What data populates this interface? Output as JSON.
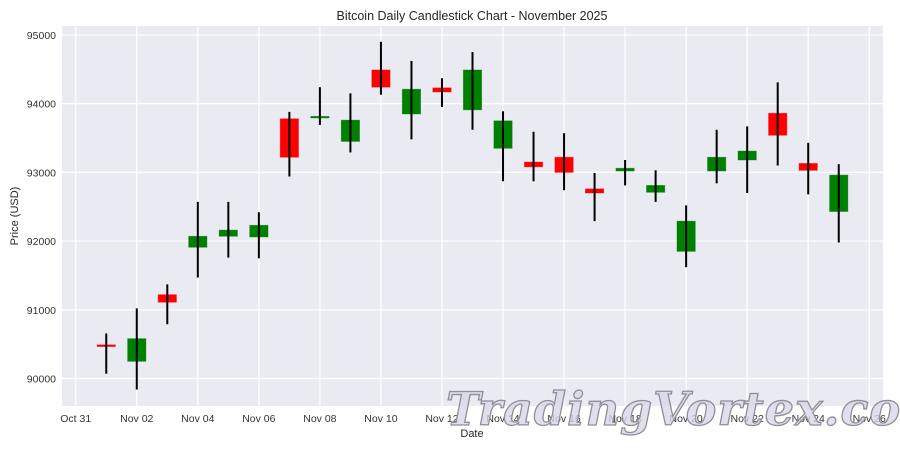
{
  "chart_data": {
    "type": "candlestick",
    "title": "Bitcoin Daily Candlestick Chart - November 2025",
    "xlabel": "Date",
    "ylabel": "Price (USD)",
    "ylim": [
      89600,
      95130
    ],
    "xlim_days_from_oct31": [
      -0.45,
      26.45
    ],
    "grid": true,
    "legend": null,
    "y_ticks": [
      90000,
      91000,
      92000,
      93000,
      94000,
      95000
    ],
    "x_ticks": [
      {
        "label": "Oct 31",
        "day": 0
      },
      {
        "label": "Nov 02",
        "day": 2
      },
      {
        "label": "Nov 04",
        "day": 4
      },
      {
        "label": "Nov 06",
        "day": 6
      },
      {
        "label": "Nov 08",
        "day": 8
      },
      {
        "label": "Nov 10",
        "day": 10
      },
      {
        "label": "Nov 12",
        "day": 12
      },
      {
        "label": "Nov 14",
        "day": 14
      },
      {
        "label": "Nov 16",
        "day": 16
      },
      {
        "label": "Nov 18",
        "day": 18
      },
      {
        "label": "Nov 20",
        "day": 20
      },
      {
        "label": "Nov 22",
        "day": 22
      },
      {
        "label": "Nov 24",
        "day": 24
      },
      {
        "label": "Nov 26",
        "day": 26
      }
    ],
    "colors": {
      "up": "#008000",
      "down": "#ff0000",
      "wick": "#000000",
      "background": "#eaeaf2",
      "grid": "#ffffff"
    },
    "candles": [
      {
        "date": "Nov 01",
        "day": 1,
        "open": 90490,
        "high": 90656,
        "low": 90070,
        "close": 90465
      },
      {
        "date": "Nov 02",
        "day": 2,
        "open": 90250,
        "high": 91020,
        "low": 89840,
        "close": 90580
      },
      {
        "date": "Nov 03",
        "day": 3,
        "open": 91220,
        "high": 91370,
        "low": 90790,
        "close": 91110
      },
      {
        "date": "Nov 04",
        "day": 4,
        "open": 91910,
        "high": 92570,
        "low": 91470,
        "close": 92070
      },
      {
        "date": "Nov 05",
        "day": 5,
        "open": 92070,
        "high": 92570,
        "low": 91760,
        "close": 92160
      },
      {
        "date": "Nov 06",
        "day": 6,
        "open": 92060,
        "high": 92420,
        "low": 91750,
        "close": 92230
      },
      {
        "date": "Nov 07",
        "day": 7,
        "open": 93780,
        "high": 93880,
        "low": 92940,
        "close": 93220
      },
      {
        "date": "Nov 08",
        "day": 8,
        "open": 93800,
        "high": 94240,
        "low": 93690,
        "close": 93815
      },
      {
        "date": "Nov 09",
        "day": 9,
        "open": 93450,
        "high": 94150,
        "low": 93290,
        "close": 93760
      },
      {
        "date": "Nov 10",
        "day": 10,
        "open": 94490,
        "high": 94900,
        "low": 94130,
        "close": 94240
      },
      {
        "date": "Nov 11",
        "day": 11,
        "open": 93850,
        "high": 94620,
        "low": 93480,
        "close": 94210
      },
      {
        "date": "Nov 12",
        "day": 12,
        "open": 94230,
        "high": 94370,
        "low": 93950,
        "close": 94170
      },
      {
        "date": "Nov 13",
        "day": 13,
        "open": 93910,
        "high": 94750,
        "low": 93620,
        "close": 94490
      },
      {
        "date": "Nov 14",
        "day": 14,
        "open": 93350,
        "high": 93890,
        "low": 92870,
        "close": 93750
      },
      {
        "date": "Nov 15",
        "day": 15,
        "open": 93150,
        "high": 93590,
        "low": 92870,
        "close": 93080
      },
      {
        "date": "Nov 16",
        "day": 16,
        "open": 93220,
        "high": 93570,
        "low": 92740,
        "close": 93000
      },
      {
        "date": "Nov 17",
        "day": 17,
        "open": 92760,
        "high": 92990,
        "low": 92290,
        "close": 92700
      },
      {
        "date": "Nov 18",
        "day": 18,
        "open": 93020,
        "high": 93180,
        "low": 92810,
        "close": 93060
      },
      {
        "date": "Nov 19",
        "day": 19,
        "open": 92710,
        "high": 93030,
        "low": 92570,
        "close": 92810
      },
      {
        "date": "Nov 20",
        "day": 20,
        "open": 91850,
        "high": 92520,
        "low": 91620,
        "close": 92290
      },
      {
        "date": "Nov 21",
        "day": 21,
        "open": 93020,
        "high": 93620,
        "low": 92840,
        "close": 93220
      },
      {
        "date": "Nov 22",
        "day": 22,
        "open": 93180,
        "high": 93670,
        "low": 92700,
        "close": 93310
      },
      {
        "date": "Nov 23",
        "day": 23,
        "open": 93860,
        "high": 94310,
        "low": 93100,
        "close": 93540
      },
      {
        "date": "Nov 24",
        "day": 24,
        "open": 93130,
        "high": 93430,
        "low": 92680,
        "close": 93030
      },
      {
        "date": "Nov 25",
        "day": 25,
        "open": 92430,
        "high": 93120,
        "low": 91980,
        "close": 92960
      }
    ]
  },
  "watermark": {
    "text": "TradingVortex.com"
  }
}
